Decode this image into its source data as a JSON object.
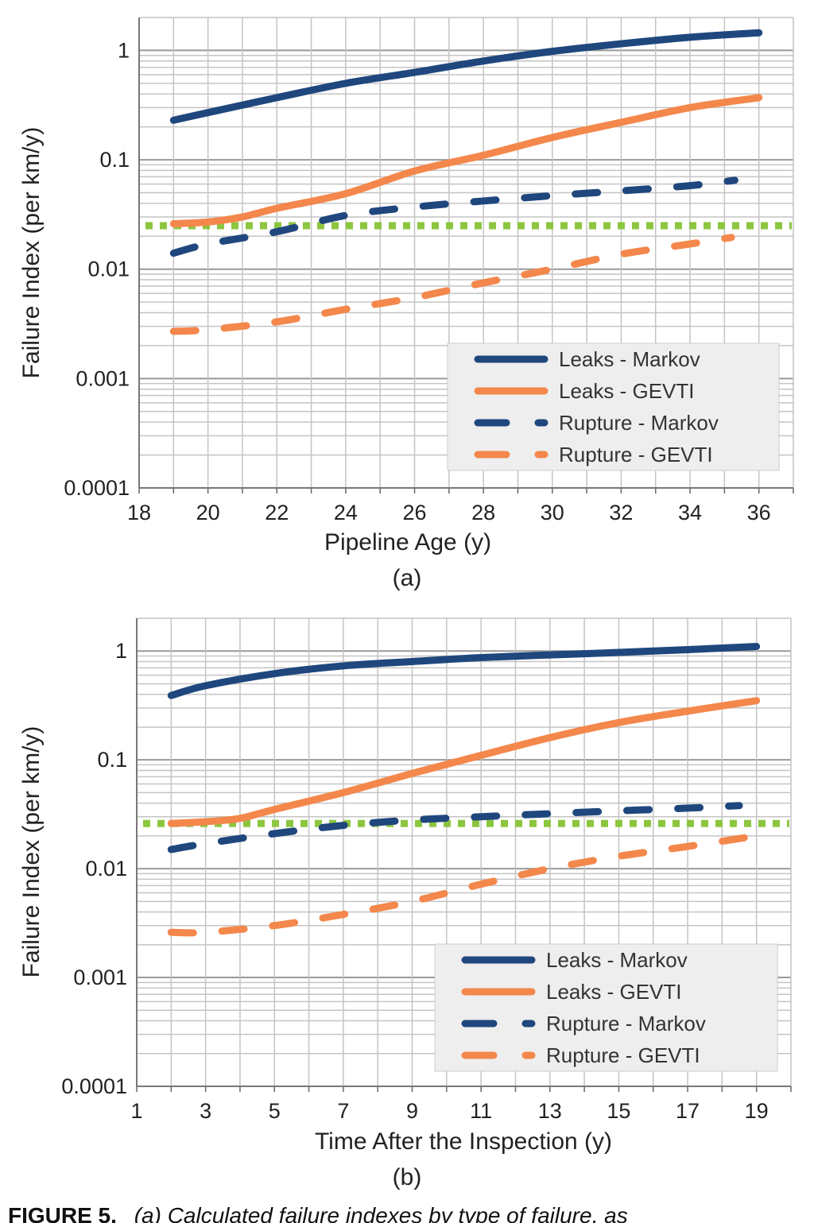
{
  "chart_data": [
    {
      "type": "line",
      "panel_label": "(a)",
      "xlabel": "Pipeline Age (y)",
      "ylabel": "Failure Index (per km/y)",
      "xlim": [
        18,
        37
      ],
      "ylim": [
        0.0001,
        2
      ],
      "yscale": "log",
      "grid": true,
      "legend_position": "bottom-right",
      "xticks": [
        "18",
        "20",
        "22",
        "24",
        "26",
        "28",
        "30",
        "32",
        "34",
        "36"
      ],
      "yticks": [
        "1",
        "0.1",
        "0.01",
        "0.001",
        "0.0001"
      ],
      "threshold": {
        "value": 0.025,
        "color": "#8cc63f",
        "style": "dotted"
      },
      "series": [
        {
          "name": "Leaks - Markov",
          "color": "#1f477d",
          "style": "solid",
          "x": [
            19,
            20,
            22,
            24,
            26,
            28,
            30,
            32,
            34,
            36
          ],
          "y": [
            0.23,
            0.27,
            0.37,
            0.5,
            0.63,
            0.8,
            0.98,
            1.15,
            1.32,
            1.45
          ]
        },
        {
          "name": "Leaks - GEVTI",
          "color": "#f4874b",
          "style": "solid",
          "x": [
            19,
            20,
            21,
            22,
            24,
            26,
            28,
            30,
            32,
            34,
            36
          ],
          "y": [
            0.026,
            0.027,
            0.03,
            0.036,
            0.049,
            0.079,
            0.11,
            0.16,
            0.22,
            0.3,
            0.37
          ]
        },
        {
          "name": "Rupture - Markov",
          "color": "#1f477d",
          "style": "dashed",
          "x": [
            19,
            20,
            22,
            24,
            26,
            28,
            30,
            32,
            34,
            35.3
          ],
          "y": [
            0.014,
            0.017,
            0.022,
            0.031,
            0.037,
            0.042,
            0.047,
            0.052,
            0.058,
            0.065
          ]
        },
        {
          "name": "Rupture - GEVTI",
          "color": "#f4874b",
          "style": "dashed",
          "x": [
            19,
            20,
            22,
            24,
            26,
            28,
            30,
            32,
            34,
            35.2
          ],
          "y": [
            0.0027,
            0.0028,
            0.0033,
            0.0043,
            0.0055,
            0.0075,
            0.01,
            0.0137,
            0.017,
            0.0195
          ]
        }
      ]
    },
    {
      "type": "line",
      "panel_label": "(b)",
      "xlabel": "Time After the Inspection (y)",
      "ylabel": "Failure Index (per km/y)",
      "xlim": [
        1,
        20
      ],
      "ylim": [
        0.0001,
        2
      ],
      "yscale": "log",
      "grid": true,
      "legend_position": "bottom-right",
      "xticks": [
        "1",
        "3",
        "5",
        "7",
        "9",
        "11",
        "13",
        "15",
        "17",
        "19"
      ],
      "yticks": [
        "1",
        "0.1",
        "0.01",
        "0.001",
        "0.0001"
      ],
      "threshold": {
        "value": 0.026,
        "color": "#8cc63f",
        "style": "dotted"
      },
      "series": [
        {
          "name": "Leaks - Markov",
          "color": "#1f477d",
          "style": "solid",
          "x": [
            2,
            3,
            5,
            7,
            9,
            11,
            13,
            15,
            17,
            19
          ],
          "y": [
            0.39,
            0.48,
            0.62,
            0.73,
            0.8,
            0.87,
            0.92,
            0.97,
            1.03,
            1.1
          ]
        },
        {
          "name": "Leaks - GEVTI",
          "color": "#f4874b",
          "style": "solid",
          "x": [
            2,
            3,
            4,
            5,
            7,
            9,
            11,
            13,
            15,
            17,
            19
          ],
          "y": [
            0.026,
            0.027,
            0.029,
            0.035,
            0.05,
            0.075,
            0.11,
            0.16,
            0.22,
            0.28,
            0.35
          ]
        },
        {
          "name": "Rupture - Markov",
          "color": "#1f477d",
          "style": "dashed",
          "x": [
            2,
            3,
            5,
            7,
            9,
            11,
            13,
            15,
            17,
            18.5
          ],
          "y": [
            0.015,
            0.017,
            0.021,
            0.025,
            0.028,
            0.03,
            0.032,
            0.034,
            0.036,
            0.038
          ]
        },
        {
          "name": "Rupture - GEVTI",
          "color": "#f4874b",
          "style": "dashed",
          "x": [
            2,
            3,
            5,
            7,
            9,
            11,
            13,
            15,
            17,
            19
          ],
          "y": [
            0.0026,
            0.0026,
            0.003,
            0.0038,
            0.005,
            0.0072,
            0.01,
            0.013,
            0.016,
            0.02
          ]
        }
      ]
    }
  ],
  "caption": {
    "figure_label": "FIGURE 5.",
    "text": "(a) Calculated failure indexes by type of failure, as"
  }
}
